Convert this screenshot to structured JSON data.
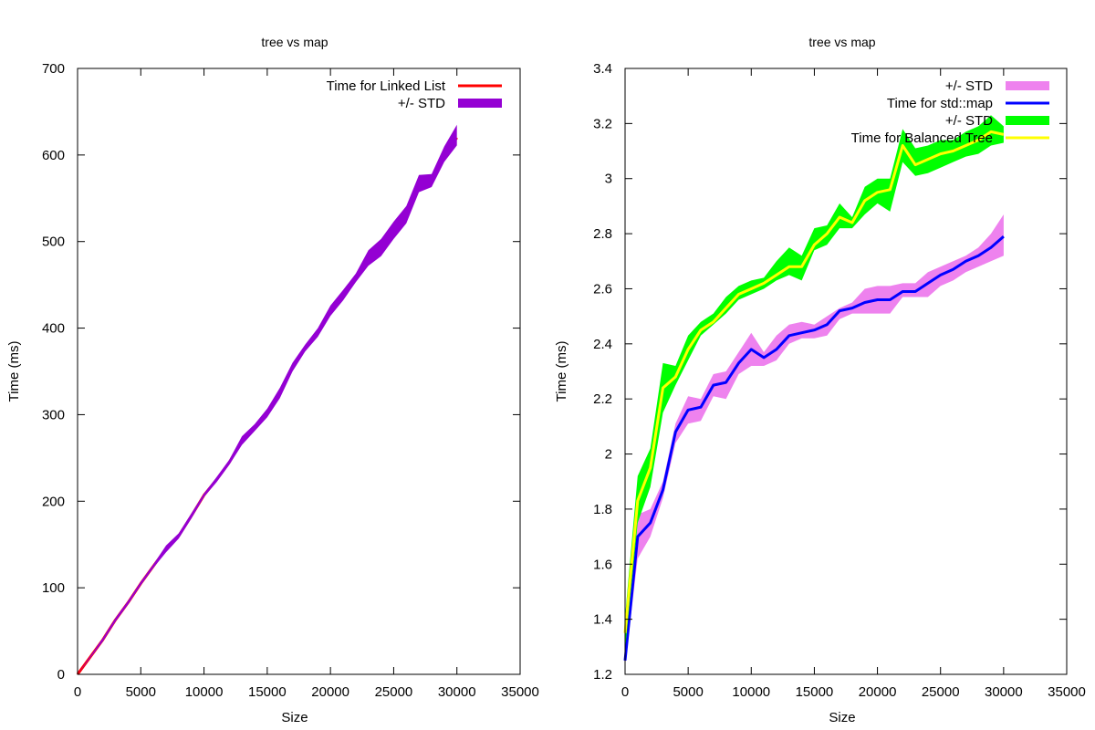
{
  "charts": [
    {
      "title": "tree vs map",
      "xlabel": "Size",
      "ylabel": "Time (ms)",
      "xticks": [
        "0",
        "5000",
        "10000",
        "15000",
        "20000",
        "25000",
        "30000",
        "35000"
      ],
      "yticks": [
        "0",
        "100",
        "200",
        "300",
        "400",
        "500",
        "600",
        "700"
      ]
    },
    {
      "title": "tree vs map",
      "xlabel": "Size",
      "ylabel": "Time (ms)",
      "xticks": [
        "0",
        "5000",
        "10000",
        "15000",
        "20000",
        "25000",
        "30000",
        "35000"
      ],
      "yticks": [
        "1.2",
        "1.4",
        "1.6",
        "1.8",
        "2",
        "2.2",
        "2.4",
        "2.6",
        "2.8",
        "3",
        "3.2",
        "3.4"
      ]
    }
  ],
  "chart_data": [
    {
      "type": "line",
      "title": "tree vs map",
      "xlabel": "Size",
      "ylabel": "Time (ms)",
      "xlim": [
        0,
        35000
      ],
      "ylim": [
        0,
        700
      ],
      "legend": "top-right",
      "grid": false,
      "x": [
        0,
        1000,
        2000,
        3000,
        4000,
        5000,
        6000,
        7000,
        8000,
        9000,
        10000,
        11000,
        12000,
        13000,
        14000,
        15000,
        16000,
        17000,
        18000,
        19000,
        20000,
        21000,
        22000,
        23000,
        24000,
        25000,
        26000,
        27000,
        28000,
        29000,
        30000
      ],
      "series": [
        {
          "name": "Time for Linked List",
          "role": "line",
          "color": "#ff0000",
          "values": [
            0,
            20,
            40,
            63,
            83,
            105,
            125,
            145,
            160,
            183,
            207,
            225,
            245,
            270,
            285,
            302,
            325,
            355,
            377,
            395,
            420,
            438,
            458,
            480,
            492,
            512,
            530,
            566,
            570,
            600,
            620
          ]
        },
        {
          "name": "+/- STD",
          "role": "band",
          "color": "#9400d3",
          "lower": [
            0,
            19,
            38,
            61,
            81,
            103,
            123,
            141,
            157,
            180,
            205,
            222,
            242,
            265,
            281,
            297,
            319,
            350,
            373,
            390,
            414,
            432,
            453,
            472,
            483,
            503,
            521,
            557,
            563,
            592,
            611
          ],
          "upper": [
            0,
            21,
            42,
            65,
            85,
            107,
            127,
            149,
            163,
            186,
            209,
            228,
            248,
            275,
            289,
            307,
            331,
            360,
            381,
            400,
            426,
            444,
            463,
            490,
            503,
            523,
            541,
            577,
            578,
            610,
            635
          ]
        }
      ]
    },
    {
      "type": "line",
      "title": "tree vs map",
      "xlabel": "Size",
      "ylabel": "Time (ms)",
      "xlim": [
        0,
        35000
      ],
      "ylim": [
        1.2,
        3.4
      ],
      "legend": "top-right",
      "grid": false,
      "x": [
        0,
        1000,
        2000,
        3000,
        4000,
        5000,
        6000,
        7000,
        8000,
        9000,
        10000,
        11000,
        12000,
        13000,
        14000,
        15000,
        16000,
        17000,
        18000,
        19000,
        20000,
        21000,
        22000,
        23000,
        24000,
        25000,
        26000,
        27000,
        28000,
        29000,
        30000
      ],
      "series": [
        {
          "name": "+/- STD",
          "role": "band",
          "color": "#ee82ee",
          "lower": [
            1.23,
            1.62,
            1.7,
            1.84,
            2.04,
            2.11,
            2.12,
            2.21,
            2.2,
            2.29,
            2.32,
            2.32,
            2.34,
            2.4,
            2.42,
            2.42,
            2.43,
            2.49,
            2.51,
            2.51,
            2.51,
            2.51,
            2.57,
            2.57,
            2.57,
            2.61,
            2.63,
            2.66,
            2.68,
            2.7,
            2.72
          ],
          "upper": [
            1.27,
            1.78,
            1.8,
            1.9,
            2.11,
            2.21,
            2.2,
            2.29,
            2.3,
            2.37,
            2.44,
            2.37,
            2.43,
            2.47,
            2.48,
            2.47,
            2.5,
            2.53,
            2.55,
            2.6,
            2.61,
            2.61,
            2.62,
            2.62,
            2.66,
            2.68,
            2.7,
            2.72,
            2.75,
            2.8,
            2.87
          ]
        },
        {
          "name": "Time for std::map",
          "role": "line",
          "color": "#0000ff",
          "values": [
            1.25,
            1.7,
            1.75,
            1.87,
            2.08,
            2.16,
            2.17,
            2.25,
            2.26,
            2.33,
            2.38,
            2.35,
            2.38,
            2.43,
            2.44,
            2.45,
            2.47,
            2.52,
            2.53,
            2.55,
            2.56,
            2.56,
            2.59,
            2.59,
            2.62,
            2.65,
            2.67,
            2.7,
            2.72,
            2.75,
            2.79
          ]
        },
        {
          "name": "+/- STD",
          "role": "band",
          "color": "#00ff00",
          "lower": [
            1.29,
            1.75,
            1.88,
            2.15,
            2.25,
            2.34,
            2.43,
            2.47,
            2.51,
            2.56,
            2.58,
            2.6,
            2.63,
            2.65,
            2.63,
            2.74,
            2.76,
            2.82,
            2.82,
            2.87,
            2.91,
            2.88,
            3.06,
            3.01,
            3.02,
            3.04,
            3.06,
            3.08,
            3.09,
            3.12,
            3.13
          ],
          "upper": [
            1.41,
            1.92,
            2.02,
            2.33,
            2.32,
            2.43,
            2.48,
            2.51,
            2.57,
            2.61,
            2.63,
            2.64,
            2.7,
            2.75,
            2.72,
            2.82,
            2.83,
            2.91,
            2.86,
            2.97,
            3.0,
            3.0,
            3.18,
            3.11,
            3.12,
            3.14,
            3.14,
            3.17,
            3.19,
            3.23,
            3.19
          ]
        },
        {
          "name": "Time for Balanced Tree",
          "role": "line",
          "color": "#ffff00",
          "values": [
            1.35,
            1.83,
            1.95,
            2.24,
            2.28,
            2.38,
            2.45,
            2.48,
            2.53,
            2.58,
            2.6,
            2.62,
            2.65,
            2.68,
            2.68,
            2.76,
            2.8,
            2.86,
            2.84,
            2.92,
            2.95,
            2.96,
            3.12,
            3.05,
            3.07,
            3.09,
            3.1,
            3.12,
            3.14,
            3.17,
            3.16
          ]
        }
      ]
    }
  ]
}
